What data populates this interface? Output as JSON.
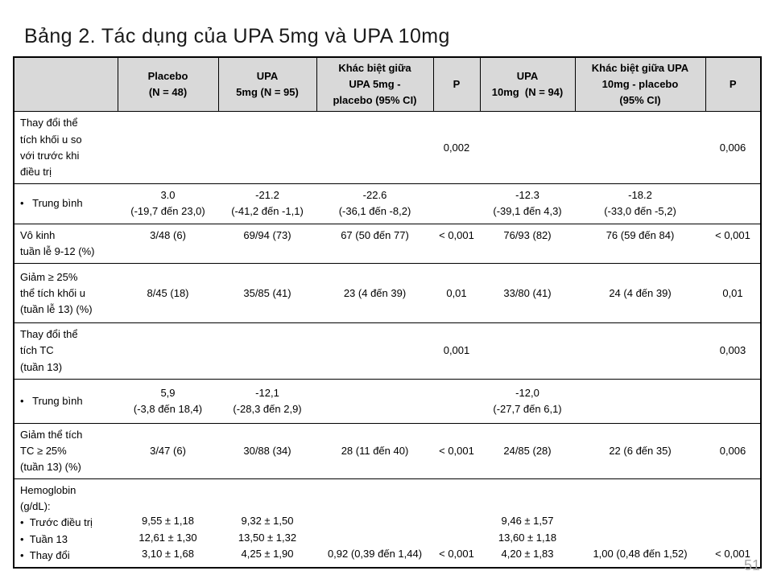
{
  "page": {
    "title": "Bảng 2. Tác dụng của UPA 5mg và UPA 10mg",
    "page_number": "51",
    "colors": {
      "header_bg": "#d9d9d9",
      "border": "#000000",
      "text": "#000000",
      "page_number": "#a6a6a6"
    }
  },
  "table": {
    "columns": [
      {
        "label": ""
      },
      {
        "label": "Placebo\n(N = 48)"
      },
      {
        "label": "UPA\n5mg (N = 95)"
      },
      {
        "label": "Khác biệt giữa\nUPA 5mg -\nplacebo (95% CI)"
      },
      {
        "label": "P"
      },
      {
        "label": "UPA\n10mg  (N = 94)"
      },
      {
        "label": "Khác biệt giữa UPA\n10mg - placebo\n(95% CI)"
      },
      {
        "label": "P"
      }
    ],
    "rows": [
      {
        "label": "Thay đổi thể\ntích khối u so\nvới trước khi\nđiều trị",
        "cells": [
          "",
          "",
          "",
          "0,002",
          "",
          "",
          "0,006"
        ]
      },
      {
        "label": "•   Trung bình",
        "cells": [
          "3.0\n(-19,7 đến 23,0)",
          "-21.2\n(-41,2 đến -1,1)",
          "-22.6\n(-36,1 đến -8,2)",
          "",
          "-12.3\n(-39,1 đến 4,3)",
          "-18.2\n(-33,0 đến -5,2)",
          ""
        ]
      },
      {
        "label": "Vô kinh\ntuần lễ 9-12 (%)",
        "cells": [
          "3/48 (6)",
          "69/94 (73)",
          "67 (50 đến 77)",
          "< 0,001",
          "76/93 (82)",
          "76 (59 đến 84)",
          "< 0,001"
        ]
      },
      {
        "label": "Giảm ≥ 25%\nthể tích khối u\n(tuần lễ 13) (%)",
        "cells": [
          "8/45 (18)",
          "35/85 (41)",
          "23 (4 đến 39)",
          "0,01",
          "33/80 (41)",
          "24 (4 đến 39)",
          "0,01"
        ]
      },
      {
        "label": "Thay đổi thể\ntích TC\n(tuần 13)",
        "cells": [
          "",
          "",
          "",
          "0,001",
          "",
          "",
          "0,003"
        ]
      },
      {
        "label": "•   Trung bình",
        "cells": [
          "5,9\n(-3,8 đến 18,4)",
          "-12,1\n(-28,3 đến 2,9)",
          "",
          "",
          "-12,0\n(-27,7 đến 6,1)",
          "",
          ""
        ]
      },
      {
        "label": "Giảm thể tích\nTC ≥ 25%\n(tuần 13) (%)",
        "cells": [
          "3/47 (6)",
          "30/88 (34)",
          "28 (11 đến 40)",
          "< 0,001",
          "24/85 (28)",
          "22 (6 đến 35)",
          "0,006"
        ]
      },
      {
        "label": "Hemoglobin\n(g/dL):\n•  Trước điều trị\n•  Tuần 13\n•  Thay đổi",
        "cells": [
          "9,55 ± 1,18\n12,61 ± 1,30\n3,10 ± 1,68",
          "9,32 ± 1,50\n13,50 ± 1,32\n4,25 ± 1,90",
          "0,92 (0,39 đến 1,44)",
          "< 0,001",
          "9,46 ± 1,57\n13,60 ± 1,18\n4,20 ± 1,83",
          "1,00 (0,48 đến 1,52)",
          "< 0,001"
        ]
      }
    ]
  }
}
